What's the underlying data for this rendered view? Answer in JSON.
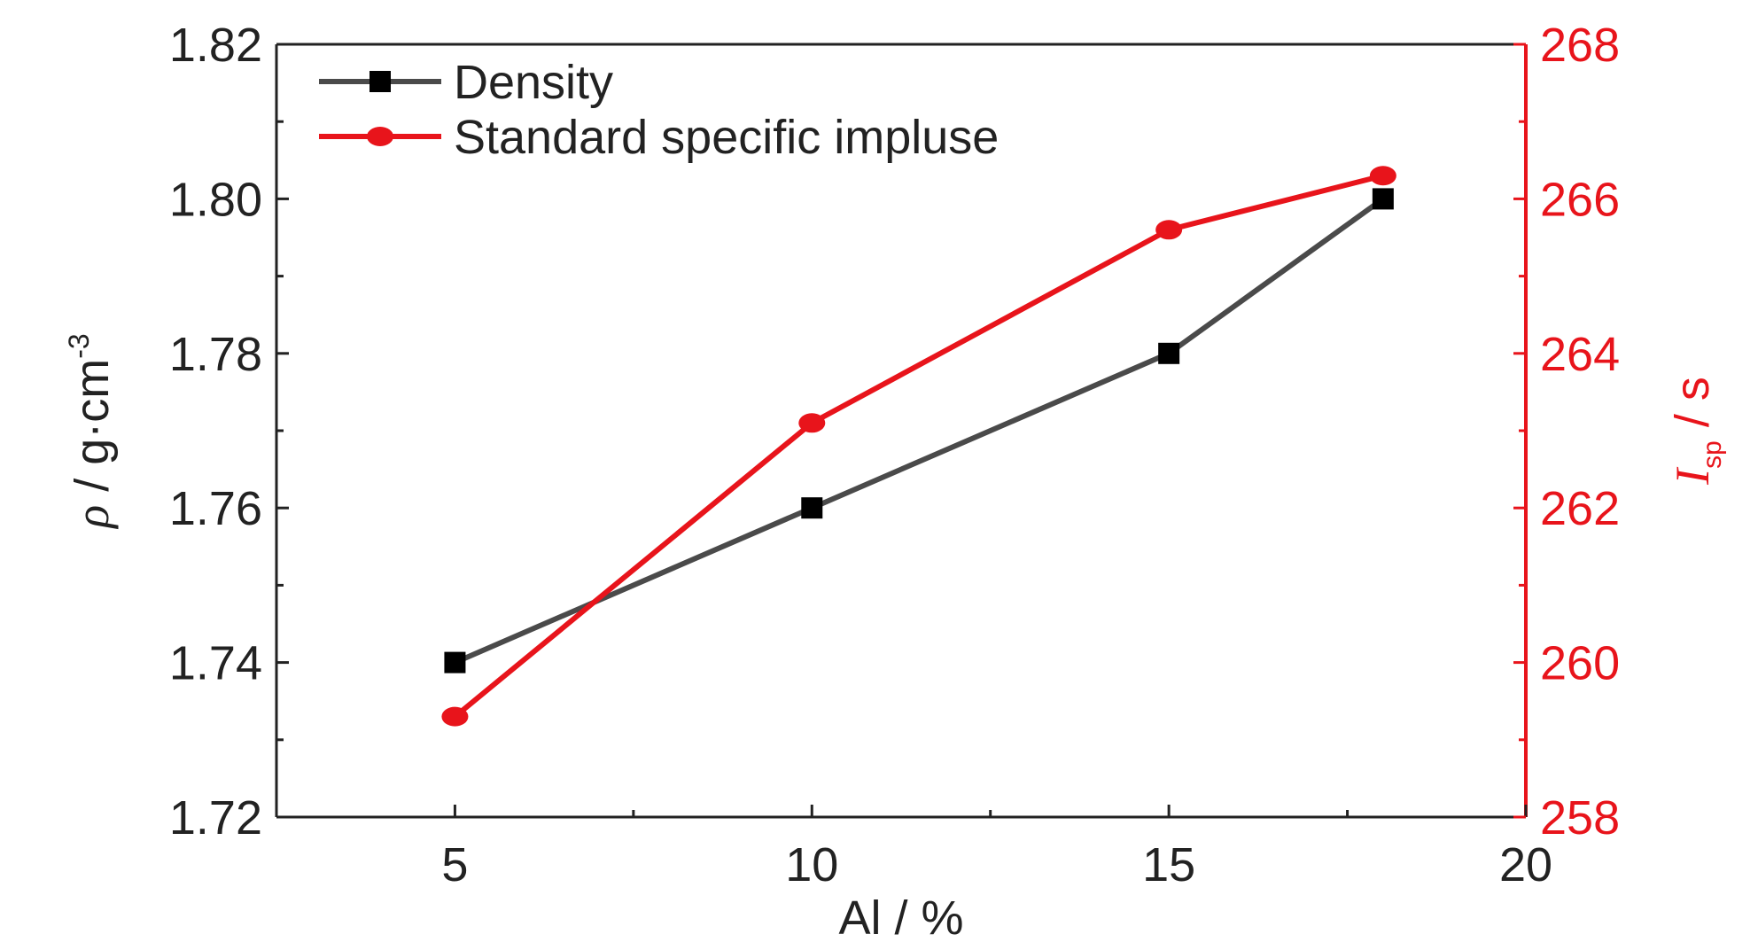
{
  "chart_data": {
    "type": "line",
    "x": [
      5,
      10,
      15,
      18
    ],
    "xlabel": "Al / %",
    "xlim": [
      2.5,
      20
    ],
    "xticks": [
      5,
      10,
      15,
      20
    ],
    "ylabel_left": {
      "symbol": "ρ",
      "text": " / g·cm",
      "superscript": "-3"
    },
    "ylim_left": [
      1.72,
      1.82
    ],
    "yticks_left": [
      1.72,
      1.74,
      1.76,
      1.78,
      1.8,
      1.82
    ],
    "yticklabels_left": [
      "1.72",
      "1.74",
      "1.76",
      "1.78",
      "1.80",
      "1.82"
    ],
    "ylabel_right": {
      "symbol": "I",
      "subscript": "sp",
      "text": " / s"
    },
    "ylim_right": [
      258,
      268
    ],
    "yticks_right": [
      258,
      260,
      262,
      264,
      266,
      268
    ],
    "yticklabels_right": [
      "258",
      "260",
      "262",
      "264",
      "266",
      "268"
    ],
    "series": [
      {
        "name": "Density",
        "axis": "left",
        "values": [
          1.74,
          1.76,
          1.78,
          1.8
        ],
        "line_color": "#4a4a4a",
        "marker_color": "#000000",
        "marker": "square"
      },
      {
        "name": "Standard specific impluse",
        "axis": "right",
        "values": [
          259.3,
          263.1,
          265.6,
          266.3
        ],
        "line_color": "#e8141b",
        "marker_color": "#e8141b",
        "marker": "circle"
      }
    ],
    "legend": "top-left",
    "grid": false,
    "left_axis_color": "#222222",
    "right_axis_color": "#e8141b"
  }
}
